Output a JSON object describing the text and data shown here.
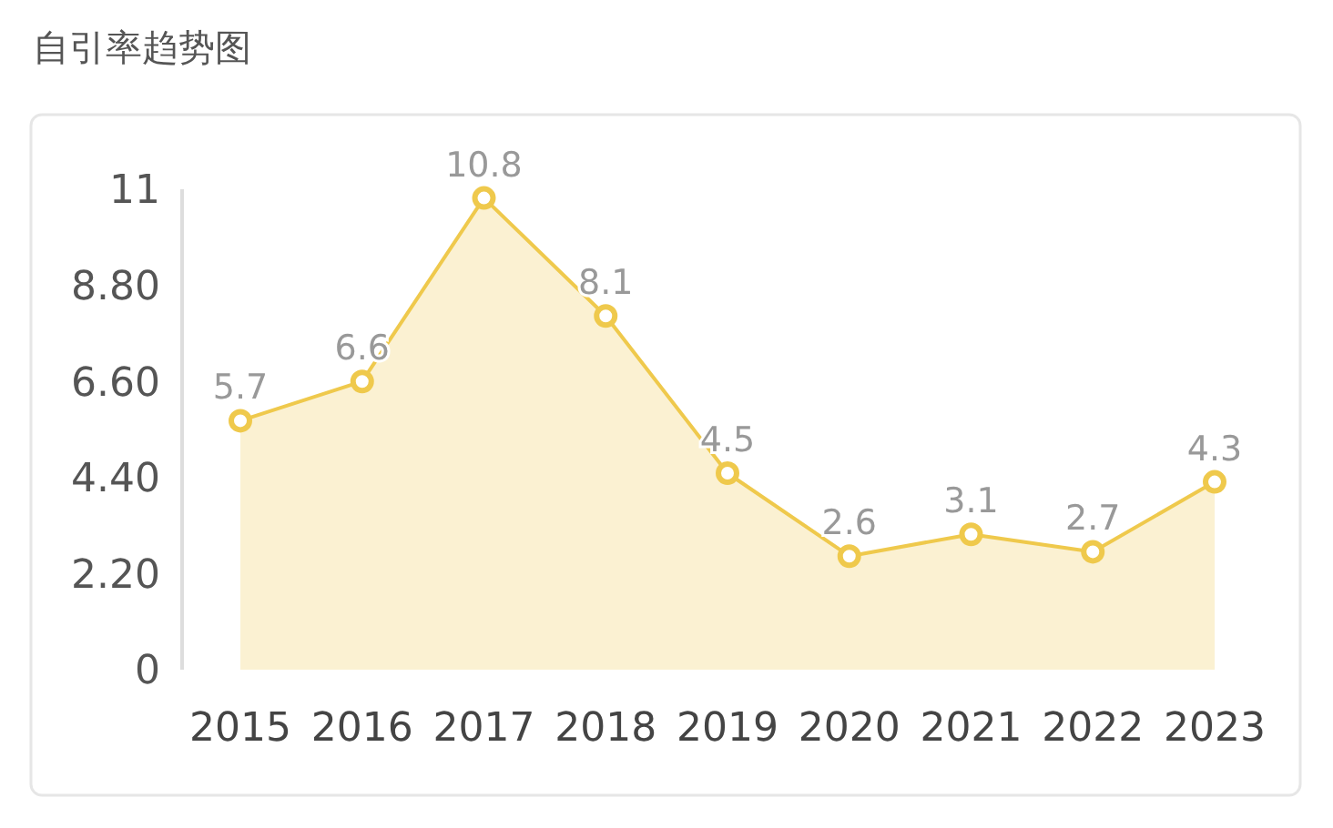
{
  "chart_data": {
    "type": "area",
    "title": "自引率趋势图",
    "categories": [
      "2015",
      "2016",
      "2017",
      "2018",
      "2019",
      "2020",
      "2021",
      "2022",
      "2023"
    ],
    "series": [
      {
        "color": "#efc94c",
        "values": [
          5.7,
          6.6,
          10.8,
          8.1,
          4.5,
          2.6,
          3.1,
          2.7,
          4.3
        ]
      }
    ],
    "ylim": [
      0,
      11
    ],
    "yticks": [
      0,
      {
        "value": 2.2,
        "label": "2.20"
      },
      {
        "value": 4.4,
        "label": "4.40"
      },
      {
        "value": 6.6,
        "label": "6.60"
      },
      {
        "value": 8.8,
        "label": "8.80"
      },
      11
    ],
    "marker": "circle",
    "data_labels": true,
    "grid": false
  }
}
